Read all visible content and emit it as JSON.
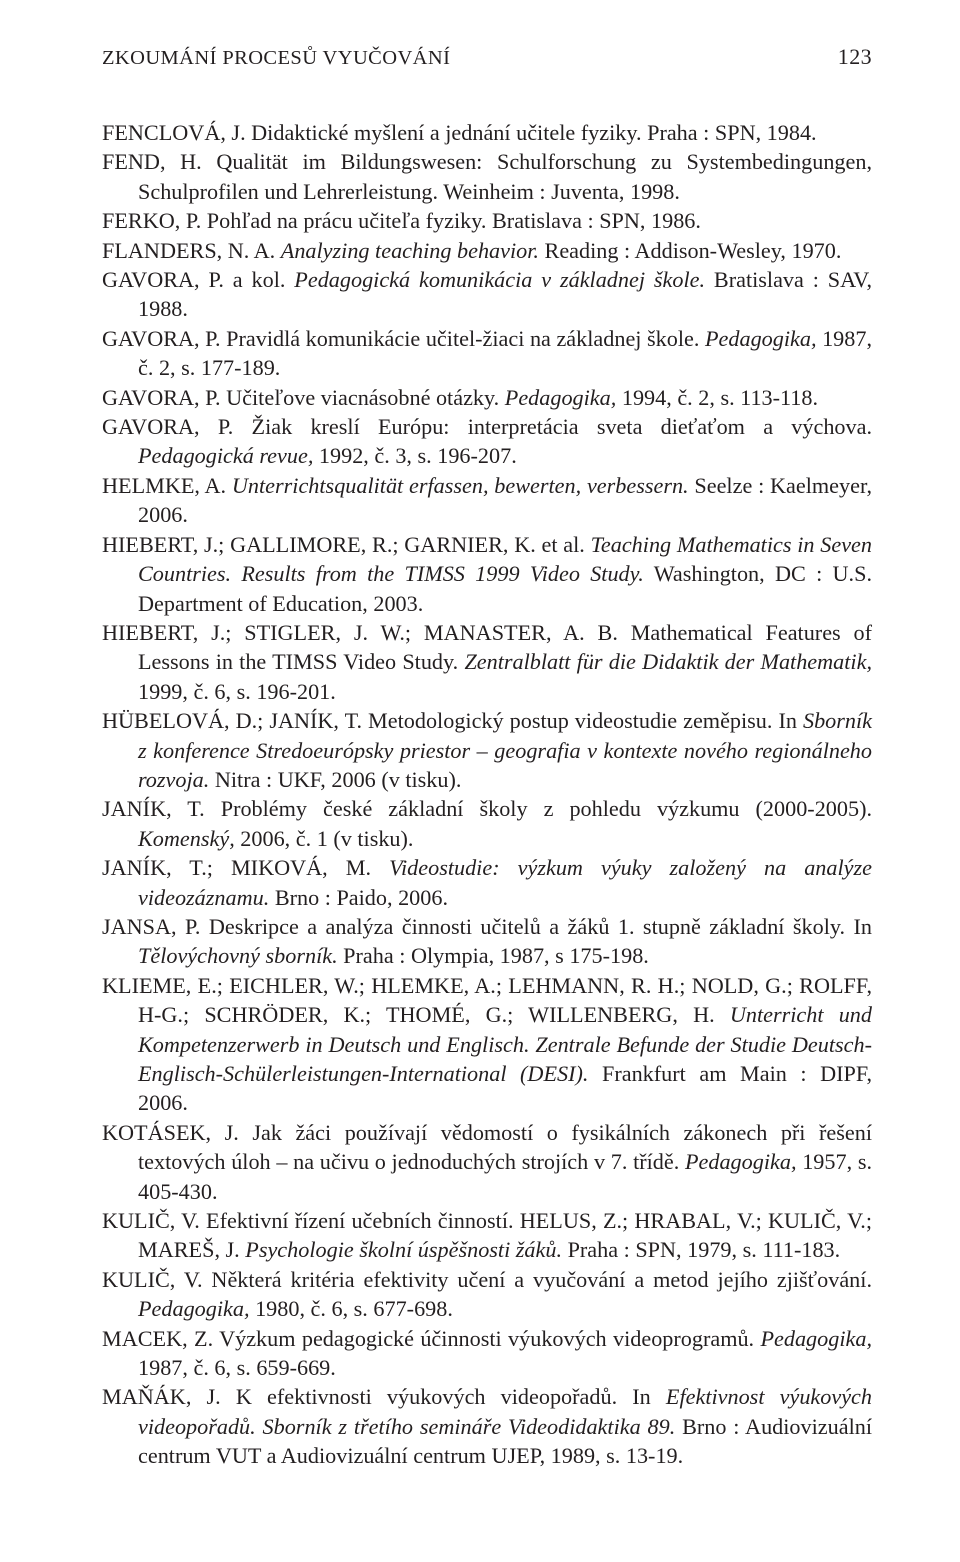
{
  "header": {
    "running_title": "ZKOUMÁNÍ PROCESŮ VYUČOVÁNÍ",
    "page_number": "123"
  },
  "references": [
    {
      "html": "FENCLOVÁ, J. Didaktické myšlení a jednání učitele fyziky. Praha : SPN, 1984."
    },
    {
      "html": "FEND, H. Qualität im Bildungswesen: Schulforschung zu Systembedingungen, Schulprofilen und Lehrerleistung. Weinheim : Juventa, 1998."
    },
    {
      "html": "FERKO, P. Pohľad na prácu učiteľa fyziky. Bratislava : SPN, 1986."
    },
    {
      "html": "FLANDERS, N. A. <em>Analyzing teaching behavior.</em> Reading : Addison-Wesley, 1970."
    },
    {
      "html": "GAVORA, P. a kol. <em>Pedagogická komunikácia v základnej škole.</em> Bratislava : SAV, 1988."
    },
    {
      "html": "GAVORA, P. Pravidlá komunikácie učitel-žiaci na základnej škole. <em>Pedagogika,</em> 1987, č. 2, s. 177-189."
    },
    {
      "html": "GAVORA, P. Učiteľove viacnásobné otázky. <em>Pedagogika,</em> 1994, č. 2, s. 113-118."
    },
    {
      "html": "GAVORA, P. Žiak kreslí Európu: interpretácia sveta dieťaťom a výchova. <em>Pedagogická revue,</em> 1992, č. 3, s. 196-207."
    },
    {
      "html": "HELMKE, A. <em>Unterrichtsqualität erfassen, bewerten, verbessern.</em> Seelze : Kaelmeyer, 2006."
    },
    {
      "html": "HIEBERT, J.; GALLIMORE, R.; GARNIER, K. et al. <em>Teaching Mathematics in Seven Countries. Results from the TIMSS 1999 Video Study.</em> Washington, DC : U.S. Department of Education, 2003."
    },
    {
      "html": "HIEBERT, J.; STIGLER, J. W.; MANASTER, A. B. Mathematical Features of Lessons in the TIMSS Video Study. <em>Zentralblatt für die Didaktik der Mathematik,</em> 1999, č. 6, s. 196-201."
    },
    {
      "html": "HÜBELOVÁ, D.; JANÍK, T. Metodologický postup videostudie zeměpisu. In <em>Sborník z konference Stredoeurópsky priestor – geografia v kontexte nového regionálneho rozvoja.</em> Nitra : UKF, 2006 (v tisku)."
    },
    {
      "html": "JANÍK, T. Problémy české základní školy z pohledu výzkumu (2000-2005). <em>Komenský,</em> 2006, č. 1 (v tisku)."
    },
    {
      "html": "JANÍK, T.; MIKOVÁ, M. <em>Videostudie: výzkum výuky založený na analýze videozáznamu.</em> Brno : Paido, 2006."
    },
    {
      "html": "JANSA, P. Deskripce a analýza činnosti učitelů a žáků 1. stupně základní školy. In <em>Tělovýchovný sborník.</em> Praha : Olympia, 1987, s 175-198."
    },
    {
      "html": "KLIEME, E.; EICHLER, W.; HLEMKE, A.; LEHMANN, R. H.; NOLD, G.; ROLFF, H-G.; SCHRÖDER, K.; THOMÉ, G.; WILLENBERG, H. <em>Unterricht und Kompetenzerwerb in Deutsch und Englisch. Zentrale Befunde der Studie Deutsch-Englisch-Schülerleistungen-International (DESI).</em> Frankfurt am Main : DIPF, 2006."
    },
    {
      "html": "KOTÁSEK, J. Jak žáci používají vědomostí o fysikálních zákonech při řešení textových úloh – na učivu o jednoduchých strojích v 7. třídě. <em>Pedagogika,</em> 1957, s. 405-430."
    },
    {
      "html": "KULIČ, V. Efektivní řízení učebních činností. HELUS, Z.; HRABAL, V.; KULIČ, V.; MAREŠ, J. <em>Psychologie školní úspěšnosti žáků.</em> Praha : SPN, 1979, s. 111-183."
    },
    {
      "html": "KULIČ, V. Některá kritéria efektivity učení a vyučování a metod jejího zjišťování. <em>Pedagogika,</em> 1980, č. 6, s. 677-698."
    },
    {
      "html": "MACEK, Z. Výzkum pedagogické účinnosti výukových videoprogramů. <em>Pedagogika,</em> 1987, č. 6, s. 659-669."
    },
    {
      "html": "MAŇÁK, J. K efektivnosti výukových videopořadů. In <em>Efektivnost výukových videopořadů. Sborník z třetího semináře Videodidaktika 89.</em> Brno : Audiovizuální centrum VUT a Audiovizuální centrum UJEP, 1989, s. 13-19."
    }
  ]
}
